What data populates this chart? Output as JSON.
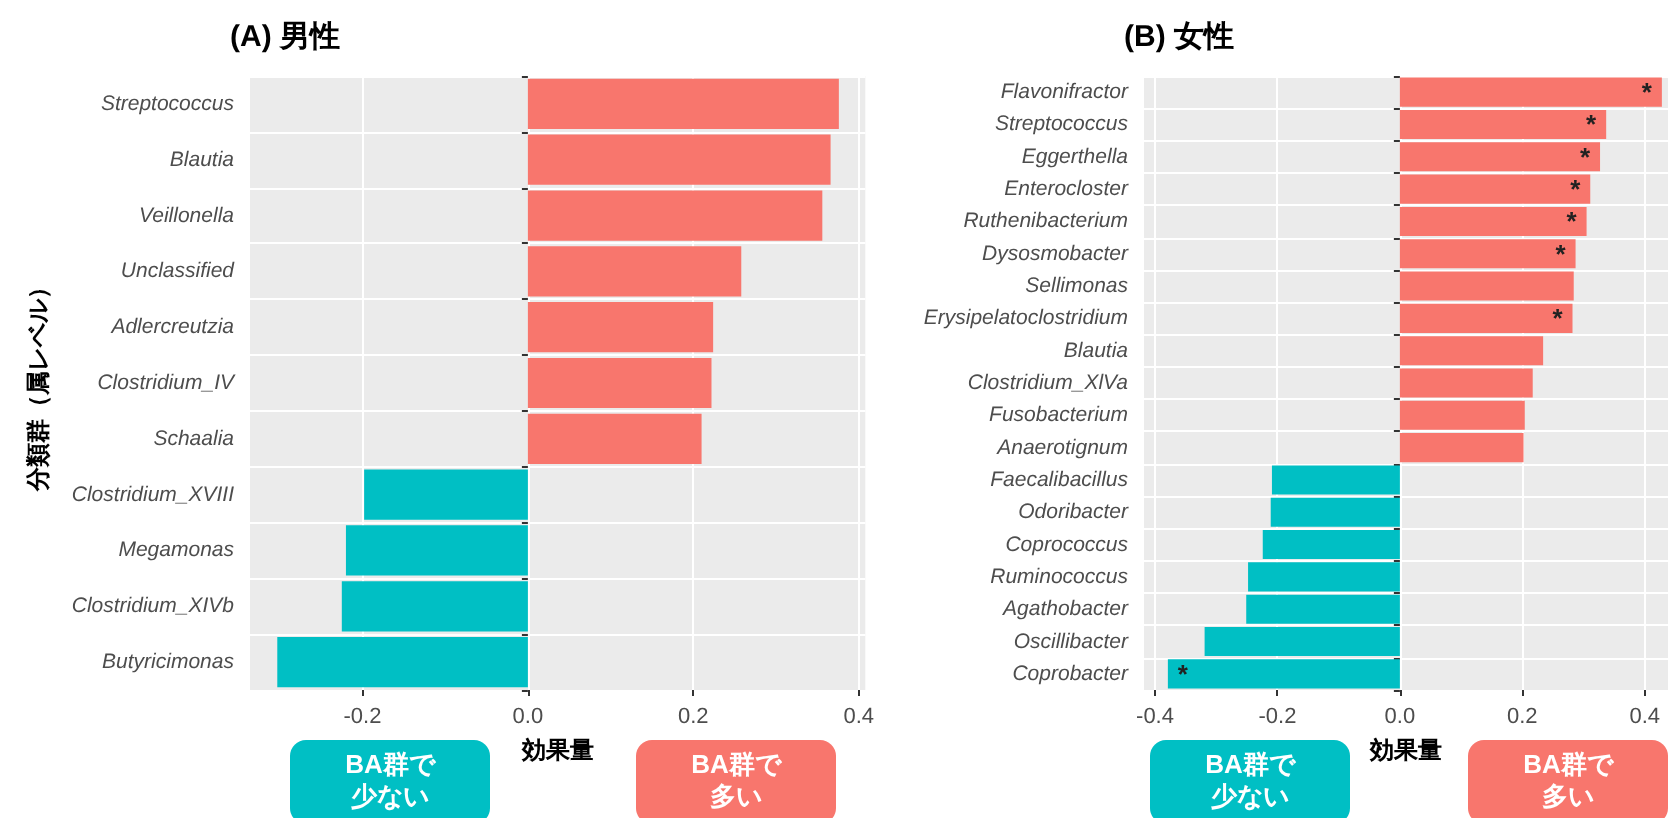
{
  "chart_data": [
    {
      "type": "bar",
      "orientation": "horizontal",
      "title": "(A) 男性",
      "xlabel": "効果量",
      "ylabel": "分類群（属レベル）",
      "categories": [
        "Streptococcus",
        "Blautia",
        "Veillonella",
        "Unclassified",
        "Adlercreutzia",
        "Clostridium_IV",
        "Schaalia",
        "Clostridium_XVIII",
        "Megamonas",
        "Clostridium_XIVb",
        "Butyricimonas"
      ],
      "values": [
        0.376,
        0.366,
        0.356,
        0.258,
        0.224,
        0.222,
        0.21,
        -0.198,
        -0.22,
        -0.225,
        -0.303
      ],
      "colors": [
        "#f8766d",
        "#f8766d",
        "#f8766d",
        "#f8766d",
        "#f8766d",
        "#f8766d",
        "#f8766d",
        "#00bfc4",
        "#00bfc4",
        "#00bfc4",
        "#00bfc4"
      ],
      "xlim": [
        -0.336,
        0.408
      ],
      "xticks": [
        -0.2,
        {
          "value": 0,
          "label": "0.0"
        },
        0.2,
        0.4
      ],
      "grid": true,
      "annotations": [
        "BA群で少ない",
        "BA群で多い"
      ]
    },
    {
      "type": "bar",
      "orientation": "horizontal",
      "title": "(B) 女性",
      "xlabel": "効果量",
      "categories": [
        "Flavonifractor",
        "Streptococcus",
        "Eggerthella",
        "Enterocloster",
        "Ruthenibacterium",
        "Dysosmobacter",
        "Sellimonas",
        "Erysipelatoclostridium",
        "Blautia",
        "Clostridium_XlVa",
        "Fusobacterium",
        "Anaerotignum",
        "Faecalibacillus",
        "Odoribacter",
        "Coprococcus",
        "Ruminococcus",
        "Agathobacter",
        "Oscillibacter",
        "Coprobacter"
      ],
      "values": [
        0.428,
        0.337,
        0.327,
        0.311,
        0.305,
        0.287,
        0.284,
        0.282,
        0.234,
        0.217,
        0.204,
        0.202,
        -0.209,
        -0.211,
        -0.224,
        -0.248,
        -0.251,
        -0.319,
        -0.379
      ],
      "colors": [
        "#f8766d",
        "#f8766d",
        "#f8766d",
        "#f8766d",
        "#f8766d",
        "#f8766d",
        "#f8766d",
        "#f8766d",
        "#f8766d",
        "#f8766d",
        "#f8766d",
        "#f8766d",
        "#00bfc4",
        "#00bfc4",
        "#00bfc4",
        "#00bfc4",
        "#00bfc4",
        "#00bfc4",
        "#00bfc4"
      ],
      "value_labels": [
        "*",
        "*",
        "*",
        "*",
        "*",
        "*",
        null,
        "*",
        null,
        null,
        null,
        null,
        null,
        null,
        null,
        null,
        null,
        null,
        "*"
      ],
      "xlim": [
        -0.418,
        0.438
      ],
      "xticks": [
        -0.4,
        -0.2,
        {
          "value": 0,
          "label": "0.0"
        },
        0.2,
        0.4
      ],
      "grid": true,
      "annotations": [
        "BA群で少ない",
        "BA群で多い"
      ]
    }
  ]
}
